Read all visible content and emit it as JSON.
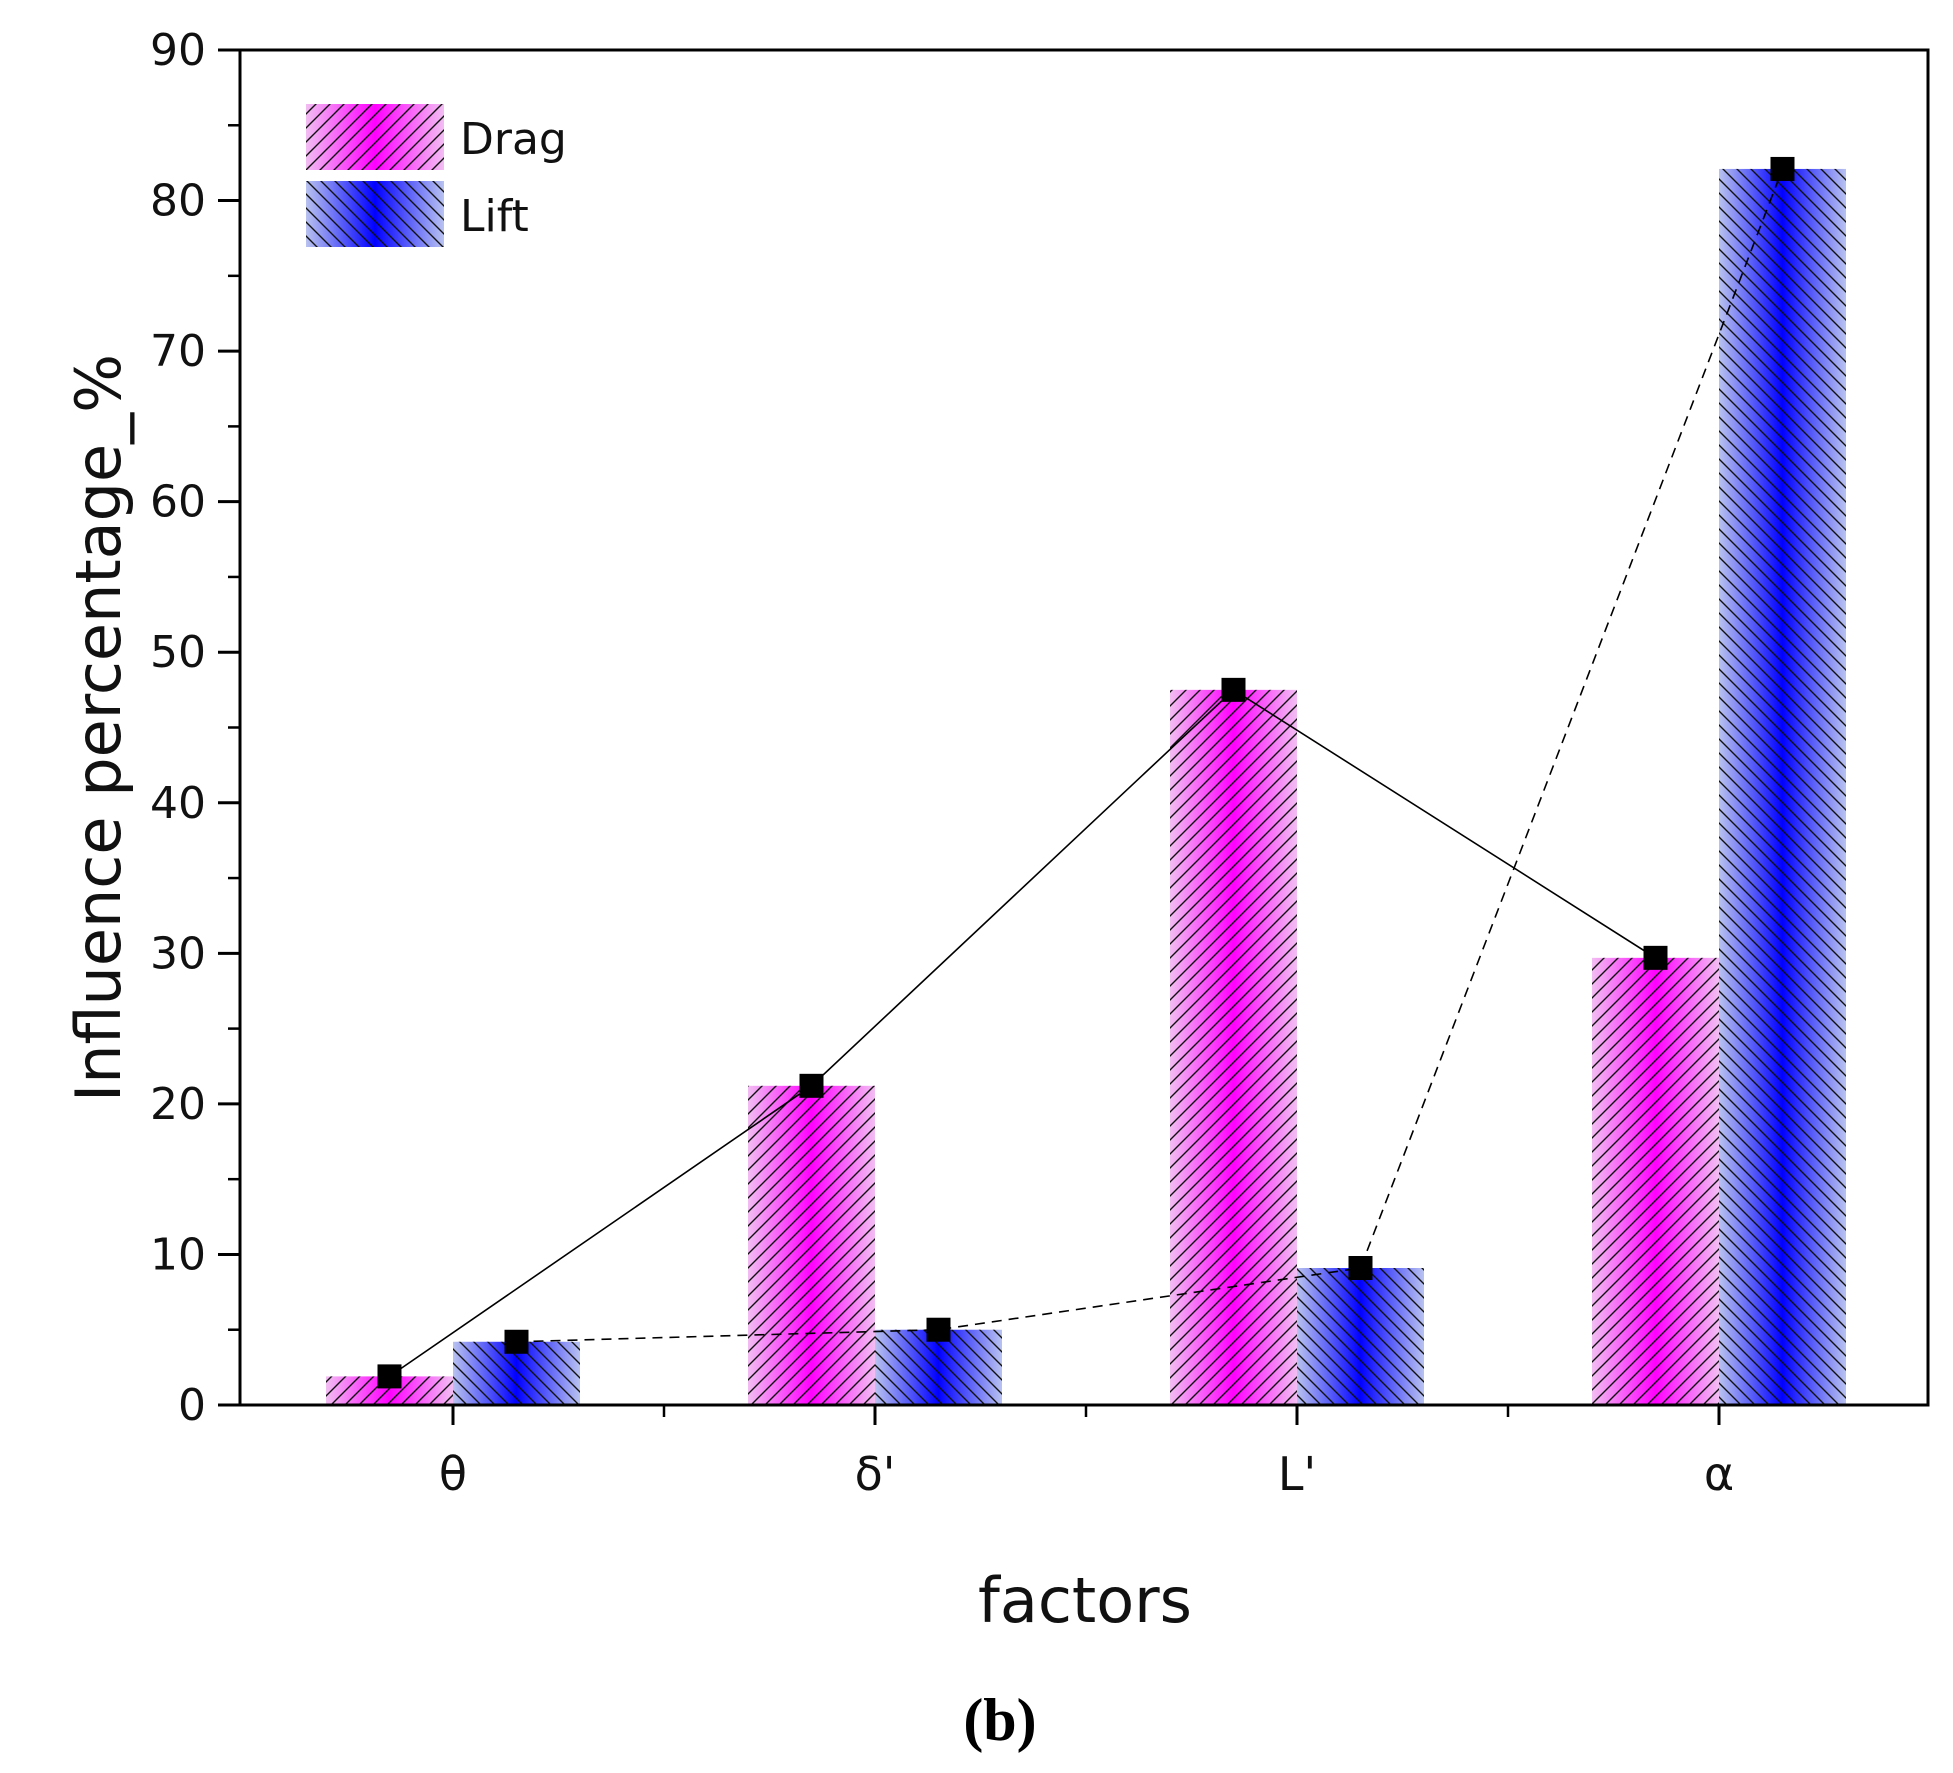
{
  "chart_data": {
    "type": "bar",
    "title": "",
    "panel_label": "(b)",
    "xlabel": "factors",
    "ylabel": "Influence percentage_%",
    "categories": [
      "θ",
      "δ'",
      "L'",
      "α"
    ],
    "ylim": [
      0,
      90
    ],
    "yticks": [
      0,
      10,
      20,
      30,
      40,
      50,
      60,
      70,
      80,
      90
    ],
    "grid": false,
    "legend_position": "top-left",
    "series": [
      {
        "name": "Drag",
        "values": [
          1.9,
          21.2,
          47.5,
          29.7
        ],
        "color": "#ff00ff",
        "hatch": "forward-diagonal",
        "line_style": "solid",
        "marker": "square"
      },
      {
        "name": "Lift",
        "values": [
          4.2,
          5.0,
          9.1,
          82.1
        ],
        "color": "#0000ff",
        "hatch": "backward-diagonal",
        "line_style": "dashed",
        "marker": "square"
      }
    ]
  }
}
